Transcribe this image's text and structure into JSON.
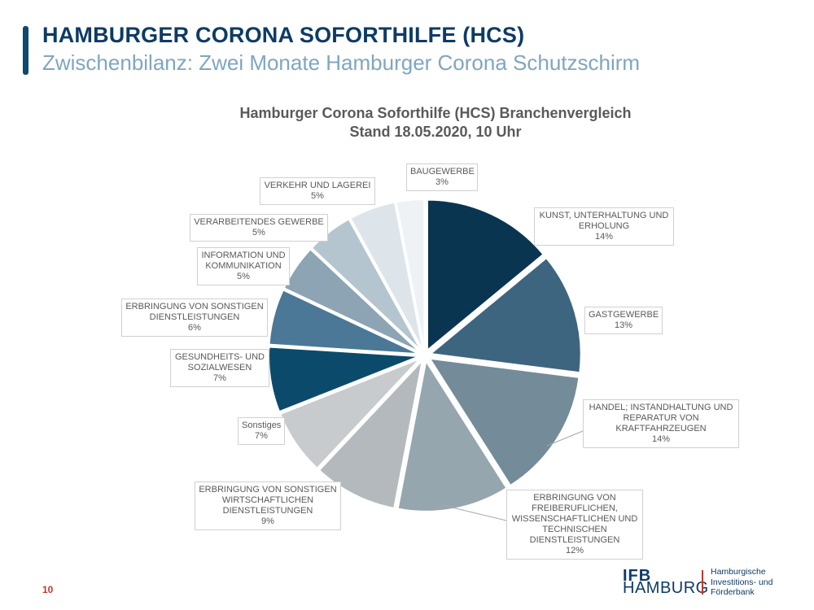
{
  "header": {
    "title": "HAMBURGER CORONA SOFORTHILFE (HCS)",
    "subtitle": "Zwischenbilanz: Zwei Monate Hamburger Corona Schutzschirm"
  },
  "chart_data": {
    "type": "pie",
    "title": "Hamburger Corona Soforthilfe (HCS) Branchenvergleich",
    "subtitle": "Stand 18.05.2020, 10 Uhr",
    "unit": "%",
    "exploded": true,
    "slices": [
      {
        "label": "KUNST, UNTERHALTUNG UND ERHOLUNG",
        "value": 14,
        "pct_label": "14%",
        "color": "#0a3551"
      },
      {
        "label": "GASTGEWERBE",
        "value": 13,
        "pct_label": "13%",
        "color": "#3d6580"
      },
      {
        "label": "HANDEL; INSTANDHALTUNG UND REPARATUR VON KRAFTFAHRZEUGEN",
        "value": 14,
        "pct_label": "14%",
        "color": "#748b99"
      },
      {
        "label": "ERBRINGUNG VON FREIBERUFLICHEN, WISSENSCHAFTLICHEN UND TECHNISCHEN DIENSTLEISTUNGEN",
        "value": 12,
        "pct_label": "12%",
        "color": "#96a6ae"
      },
      {
        "label": "ERBRINGUNG VON SONSTIGEN WIRTSCHAFTLICHEN DIENSTLEISTUNGEN",
        "value": 9,
        "pct_label": "9%",
        "color": "#b3b9bd"
      },
      {
        "label": "Sonstiges",
        "value": 7,
        "pct_label": "7%",
        "color": "#c8cbcd"
      },
      {
        "label": "GESUNDHEITS- UND SOZIALWESEN",
        "value": 7,
        "pct_label": "7%",
        "color": "#0c4a6b"
      },
      {
        "label": "ERBRINGUNG VON SONSTIGEN DIENSTLEISTUNGEN",
        "value": 6,
        "pct_label": "6%",
        "color": "#4a7896"
      },
      {
        "label": "INFORMATION UND KOMMUNIKATION",
        "value": 5,
        "pct_label": "5%",
        "color": "#8ca4b3"
      },
      {
        "label": "VERARBEITENDES GEWERBE",
        "value": 5,
        "pct_label": "5%",
        "color": "#b5c5cf"
      },
      {
        "label": "VERKEHR UND LAGEREI",
        "value": 5,
        "pct_label": "5%",
        "color": "#dde5eb"
      },
      {
        "label": "BAUGEWERBE",
        "value": 3,
        "pct_label": "3%",
        "color": "#eef2f5"
      }
    ]
  },
  "slide": {
    "page_number": "10"
  },
  "logo": {
    "ifb": "IFB",
    "hamburg": "HAMBURG",
    "text": "Hamburgische\nInvestitions- und\nFörderbank"
  }
}
